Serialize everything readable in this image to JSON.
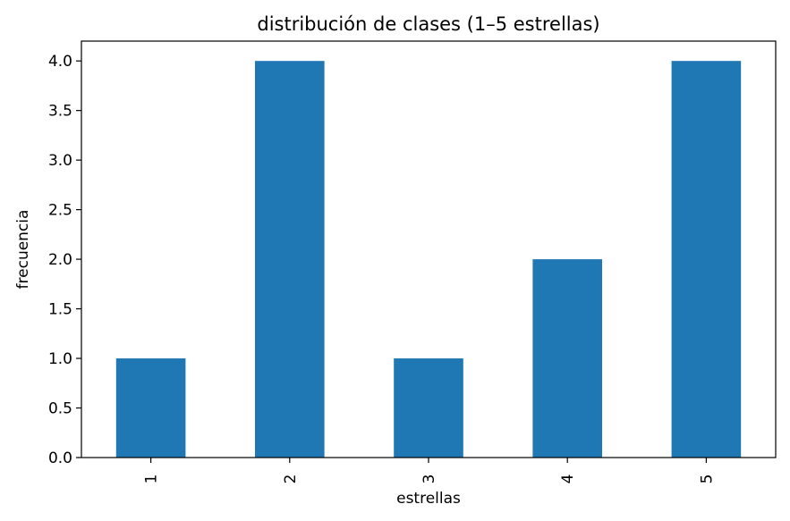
{
  "chart_data": {
    "type": "bar",
    "title": "distribución de clases (1–5 estrellas)",
    "xlabel": "estrellas",
    "ylabel": "frecuencia",
    "categories": [
      "1",
      "2",
      "3",
      "4",
      "5"
    ],
    "values": [
      1,
      4,
      1,
      2,
      4
    ],
    "ylim": [
      0,
      4.2
    ],
    "yticks": [
      "0.0",
      "0.5",
      "1.0",
      "1.5",
      "2.0",
      "2.5",
      "3.0",
      "3.5",
      "4.0"
    ],
    "bar_color": "#1f77b4",
    "grid": false,
    "legend": "none"
  }
}
